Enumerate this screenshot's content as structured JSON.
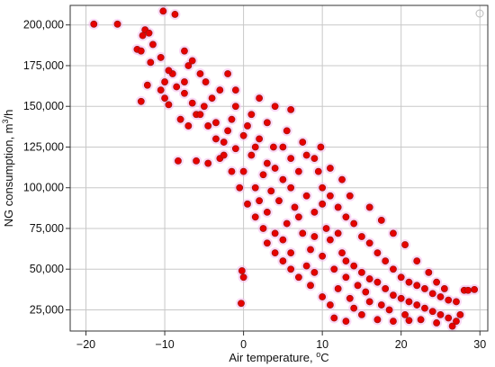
{
  "chart_data": {
    "type": "scatter",
    "title": "",
    "xlabel": {
      "pre": "Air temperature, ",
      "sup": "o",
      "post": "C"
    },
    "ylabel": {
      "pre": "NG consumption, m",
      "sup": "3",
      "post": "/h"
    },
    "xlim": [
      -22,
      31
    ],
    "ylim": [
      12000,
      212000
    ],
    "xticks": [
      -20,
      -10,
      0,
      10,
      20,
      30
    ],
    "xtick_labels": [
      "−20",
      "−10",
      "0",
      "10",
      "20",
      "30"
    ],
    "yticks": [
      25000,
      50000,
      75000,
      100000,
      125000,
      150000,
      175000,
      200000
    ],
    "ytick_labels": [
      "25,000",
      "50,000",
      "75,000",
      "100,000",
      "125,000",
      "150,000",
      "175,000",
      "200,000"
    ],
    "grid": true,
    "series": [
      {
        "marker_color": "#e60000",
        "halo_color": "#f5b8ec",
        "edge_color": "#8b1a0e",
        "points": [
          [
            -19,
            200500
          ],
          [
            -16,
            200500
          ],
          [
            -12.5,
            197000
          ],
          [
            -10.2,
            208500
          ],
          [
            -8.7,
            206500
          ],
          [
            -12.8,
            193500
          ],
          [
            -12,
            195000
          ],
          [
            -13.5,
            185000
          ],
          [
            -13,
            184000
          ],
          [
            -11.8,
            177000
          ],
          [
            -12.2,
            163000
          ],
          [
            -10.5,
            160000
          ],
          [
            -13,
            153000
          ],
          [
            -10,
            155000
          ],
          [
            -9.5,
            151000
          ],
          [
            -8.3,
            116500
          ],
          [
            -6,
            116500
          ],
          [
            -7.5,
            184000
          ],
          [
            -6.5,
            178000
          ],
          [
            -7,
            175000
          ],
          [
            -5.5,
            170000
          ],
          [
            -4.8,
            165000
          ],
          [
            -3,
            160000
          ],
          [
            -4,
            155000
          ],
          [
            -5,
            150000
          ],
          [
            -6,
            145000
          ],
          [
            -3.5,
            140000
          ],
          [
            -2,
            135000
          ],
          [
            -8,
            142000
          ],
          [
            -7,
            138000
          ],
          [
            -2.5,
            128000
          ],
          [
            -1,
            124000
          ],
          [
            0,
            132000
          ],
          [
            -1.5,
            142000
          ],
          [
            0.5,
            138000
          ],
          [
            2,
            130000
          ],
          [
            1,
            120000
          ],
          [
            3,
            115000
          ],
          [
            2.5,
            108000
          ],
          [
            4,
            112000
          ],
          [
            0,
            110000
          ],
          [
            1.5,
            100000
          ],
          [
            3.5,
            98000
          ],
          [
            5,
            105000
          ],
          [
            6,
            100000
          ],
          [
            4.5,
            92000
          ],
          [
            6.5,
            88000
          ],
          [
            8,
            95000
          ],
          [
            7,
            82000
          ],
          [
            9,
            85000
          ],
          [
            10,
            90000
          ],
          [
            5.5,
            78000
          ],
          [
            3,
            85000
          ],
          [
            2,
            92000
          ],
          [
            7.5,
            72000
          ],
          [
            9,
            70000
          ],
          [
            10.5,
            75000
          ],
          [
            11,
            68000
          ],
          [
            12,
            72000
          ],
          [
            8.5,
            62000
          ],
          [
            10,
            58000
          ],
          [
            12.5,
            60000
          ],
          [
            13,
            55000
          ],
          [
            11.5,
            50000
          ],
          [
            14,
            52000
          ],
          [
            15,
            48000
          ],
          [
            13,
            45000
          ],
          [
            16,
            44000
          ],
          [
            14.5,
            40000
          ],
          [
            17,
            42000
          ],
          [
            12,
            38000
          ],
          [
            15.5,
            36000
          ],
          [
            18,
            38000
          ],
          [
            13.5,
            32000
          ],
          [
            16,
            30000
          ],
          [
            19,
            34000
          ],
          [
            20,
            32000
          ],
          [
            17.5,
            28000
          ],
          [
            21,
            30000
          ],
          [
            22,
            28000
          ],
          [
            18.5,
            25000
          ],
          [
            23,
            26000
          ],
          [
            24,
            24000
          ],
          [
            20.5,
            22000
          ],
          [
            25,
            22000
          ],
          [
            26,
            20000
          ],
          [
            27,
            18000
          ],
          [
            22.5,
            19000
          ],
          [
            14,
            26000
          ],
          [
            11,
            28000
          ],
          [
            9,
            48000
          ],
          [
            8,
            52000
          ],
          [
            6,
            60000
          ],
          [
            5,
            68000
          ],
          [
            4,
            72000
          ],
          [
            7,
            110000
          ],
          [
            6,
            118000
          ],
          [
            5,
            125000
          ],
          [
            8,
            120000
          ],
          [
            9.5,
            110000
          ],
          [
            10,
            100000
          ],
          [
            11,
            95000
          ],
          [
            12,
            88000
          ],
          [
            13,
            82000
          ],
          [
            14,
            78000
          ],
          [
            15,
            70000
          ],
          [
            16,
            66000
          ],
          [
            17,
            60000
          ],
          [
            18,
            55000
          ],
          [
            19,
            50000
          ],
          [
            20,
            45000
          ],
          [
            21,
            42000
          ],
          [
            22,
            40000
          ],
          [
            23,
            38000
          ],
          [
            24,
            35000
          ],
          [
            25,
            33000
          ],
          [
            26,
            31000
          ],
          [
            27,
            30000
          ],
          [
            28,
            37000
          ],
          [
            29.3,
            37500
          ],
          [
            28.5,
            37000
          ],
          [
            27.5,
            22000
          ],
          [
            26.5,
            15000
          ],
          [
            24.5,
            17000
          ],
          [
            -0.2,
            49000
          ],
          [
            0,
            45000
          ],
          [
            -0.3,
            29000
          ],
          [
            9.8,
            125000
          ],
          [
            6,
            148000
          ],
          [
            4,
            150000
          ],
          [
            -4.5,
            115000
          ],
          [
            -3,
            118000
          ],
          [
            -1,
            150000
          ],
          [
            1,
            145000
          ],
          [
            3,
            140000
          ],
          [
            2,
            155000
          ],
          [
            -7.5,
            165000
          ],
          [
            -9,
            170000
          ],
          [
            -10,
            165000
          ],
          [
            -2,
            170000
          ],
          [
            -1,
            160000
          ],
          [
            1.5,
            125000
          ],
          [
            3.8,
            125000
          ],
          [
            5.5,
            135000
          ],
          [
            7.5,
            128000
          ],
          [
            9,
            118000
          ],
          [
            11,
            112000
          ],
          [
            12.5,
            105000
          ],
          [
            13.5,
            95000
          ],
          [
            16,
            88000
          ],
          [
            17.5,
            80000
          ],
          [
            19,
            72000
          ],
          [
            20.5,
            65000
          ],
          [
            22,
            55000
          ],
          [
            23.5,
            48000
          ],
          [
            24.5,
            42000
          ],
          [
            25.5,
            38000
          ],
          [
            15,
            22000
          ],
          [
            17,
            19000
          ],
          [
            19,
            18000
          ],
          [
            21,
            18500
          ],
          [
            13,
            18000
          ],
          [
            11.5,
            20000
          ],
          [
            10,
            33000
          ],
          [
            8.5,
            40000
          ],
          [
            7,
            45000
          ],
          [
            6,
            50000
          ],
          [
            5,
            55000
          ],
          [
            4,
            60000
          ],
          [
            3,
            66000
          ],
          [
            2.5,
            75000
          ],
          [
            1.5,
            82000
          ],
          [
            0.5,
            90000
          ],
          [
            -0.5,
            100000
          ],
          [
            -1.5,
            110000
          ],
          [
            -2.5,
            120000
          ],
          [
            -3.5,
            130000
          ],
          [
            -4.5,
            138000
          ],
          [
            -5.5,
            145000
          ],
          [
            -6.5,
            152000
          ],
          [
            -7.5,
            158000
          ],
          [
            -8.5,
            162000
          ],
          [
            -9.5,
            172000
          ],
          [
            -10.5,
            180000
          ],
          [
            -11.5,
            188000
          ]
        ]
      }
    ]
  }
}
